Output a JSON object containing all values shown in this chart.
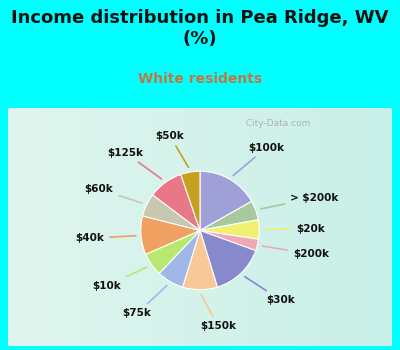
{
  "title": "Income distribution in Pea Ridge, WV\n(%)",
  "subtitle": "White residents",
  "title_color": "#111111",
  "subtitle_color": "#c07840",
  "background_top": "#00ffff",
  "labels": [
    "$100k",
    "> $200k",
    "$20k",
    "$200k",
    "$30k",
    "$150k",
    "$75k",
    "$10k",
    "$40k",
    "$60k",
    "$125k",
    "$50k"
  ],
  "values": [
    16,
    5,
    5,
    3,
    14,
    9,
    7,
    6,
    10,
    6,
    9,
    5
  ],
  "colors": [
    "#a0a0d8",
    "#a8c8a0",
    "#f0f070",
    "#f0a8b8",
    "#8888cc",
    "#f8c898",
    "#a0b8e8",
    "#b8e870",
    "#f0a060",
    "#c8c8b0",
    "#e87888",
    "#c8a020"
  ],
  "label_fontsize": 7.5,
  "wedge_linewidth": 0.8,
  "wedge_edgecolor": "#ffffff",
  "title_fontsize": 13,
  "subtitle_fontsize": 10
}
